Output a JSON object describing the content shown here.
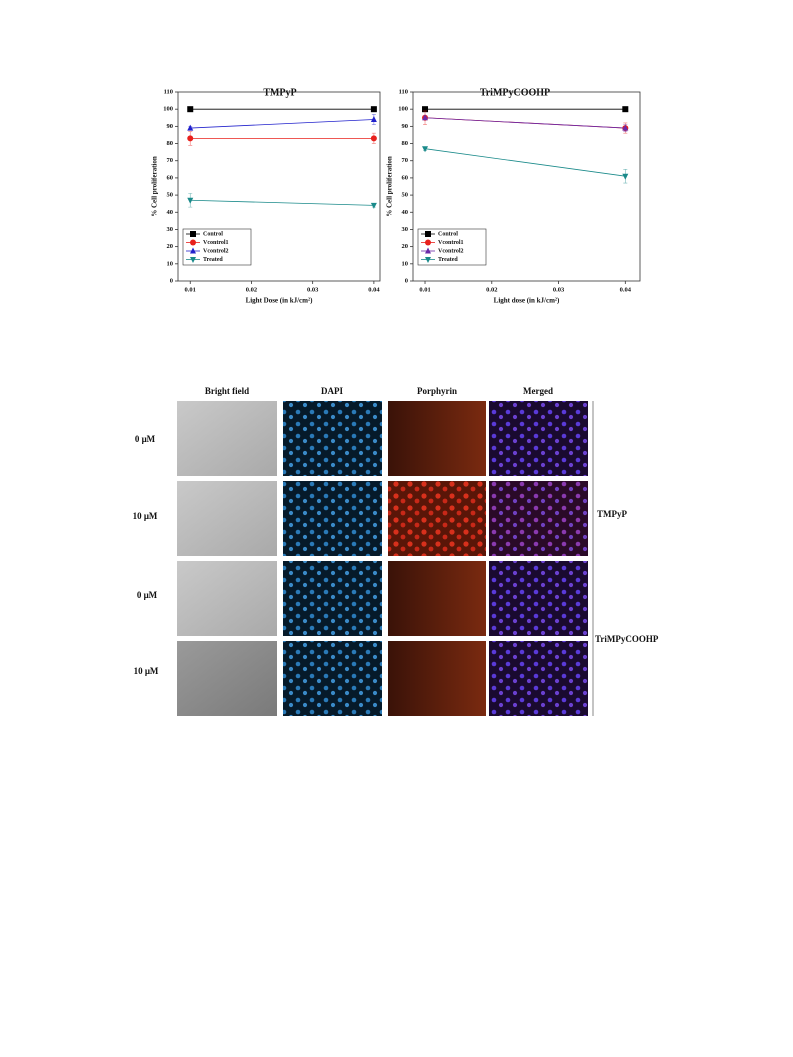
{
  "chart_data": [
    {
      "type": "line",
      "title": "TMPyP",
      "xlabel": "Light Dose (in kJ/cm²)",
      "ylabel": "% Cell proliferation",
      "x": [
        0.01,
        0.04
      ],
      "xlim": [
        0.008,
        0.041
      ],
      "xticks": [
        0.01,
        0.02,
        0.03,
        0.04
      ],
      "ylim": [
        0,
        110
      ],
      "yticks": [
        0,
        10,
        20,
        30,
        40,
        50,
        60,
        70,
        80,
        90,
        100,
        110
      ],
      "legend": "lower left",
      "series": [
        {
          "name": "Control",
          "color": "#000000",
          "marker": "square",
          "values": [
            100,
            100
          ],
          "errors": [
            0,
            0
          ]
        },
        {
          "name": "Vcontrol1",
          "color": "#e8201c",
          "marker": "circle",
          "values": [
            83,
            83
          ],
          "errors": [
            4,
            3
          ]
        },
        {
          "name": "Vcontrol2",
          "color": "#2222cc",
          "marker": "triangle",
          "values": [
            89,
            94
          ],
          "errors": [
            1,
            3
          ]
        },
        {
          "name": "Treated",
          "color": "#1a8a8a",
          "marker": "triangle-down",
          "values": [
            47,
            44
          ],
          "errors": [
            4,
            1
          ]
        }
      ]
    },
    {
      "type": "line",
      "title": "TriMPyCOOHP",
      "xlabel": "Light dose (in kJ/cm²)",
      "ylabel": "% Cell proliferation",
      "x": [
        0.01,
        0.04
      ],
      "xlim": [
        0.0082,
        0.0422
      ],
      "xticks": [
        0.01,
        0.02,
        0.03,
        0.04
      ],
      "ylim": [
        0,
        110
      ],
      "yticks": [
        0,
        10,
        20,
        30,
        40,
        50,
        60,
        70,
        80,
        90,
        100,
        110
      ],
      "legend": "lower left",
      "series": [
        {
          "name": "Control",
          "color": "#000000",
          "marker": "square",
          "values": [
            100,
            100
          ],
          "errors": [
            0,
            0
          ]
        },
        {
          "name": "Vcontrol1",
          "color": "#e8201c",
          "marker": "circle",
          "values": [
            95,
            89
          ],
          "errors": [
            4,
            3
          ]
        },
        {
          "name": "Vcontrol2",
          "color": "#6a2aa8",
          "marker": "triangle",
          "values": [
            95,
            89
          ],
          "errors": [
            1,
            2
          ]
        },
        {
          "name": "Treated",
          "color": "#1a8a8a",
          "marker": "triangle-down",
          "values": [
            77,
            61
          ],
          "errors": [
            1,
            4
          ]
        }
      ]
    }
  ],
  "microscopy": {
    "columns": [
      "Bright field",
      "DAPI",
      "Porphyrin",
      "Merged"
    ],
    "rows": [
      "0 μM",
      "10 μM",
      "0 μM",
      "10 μM"
    ],
    "groups": [
      "TMPyP",
      "TriMPyCOOHP"
    ]
  }
}
